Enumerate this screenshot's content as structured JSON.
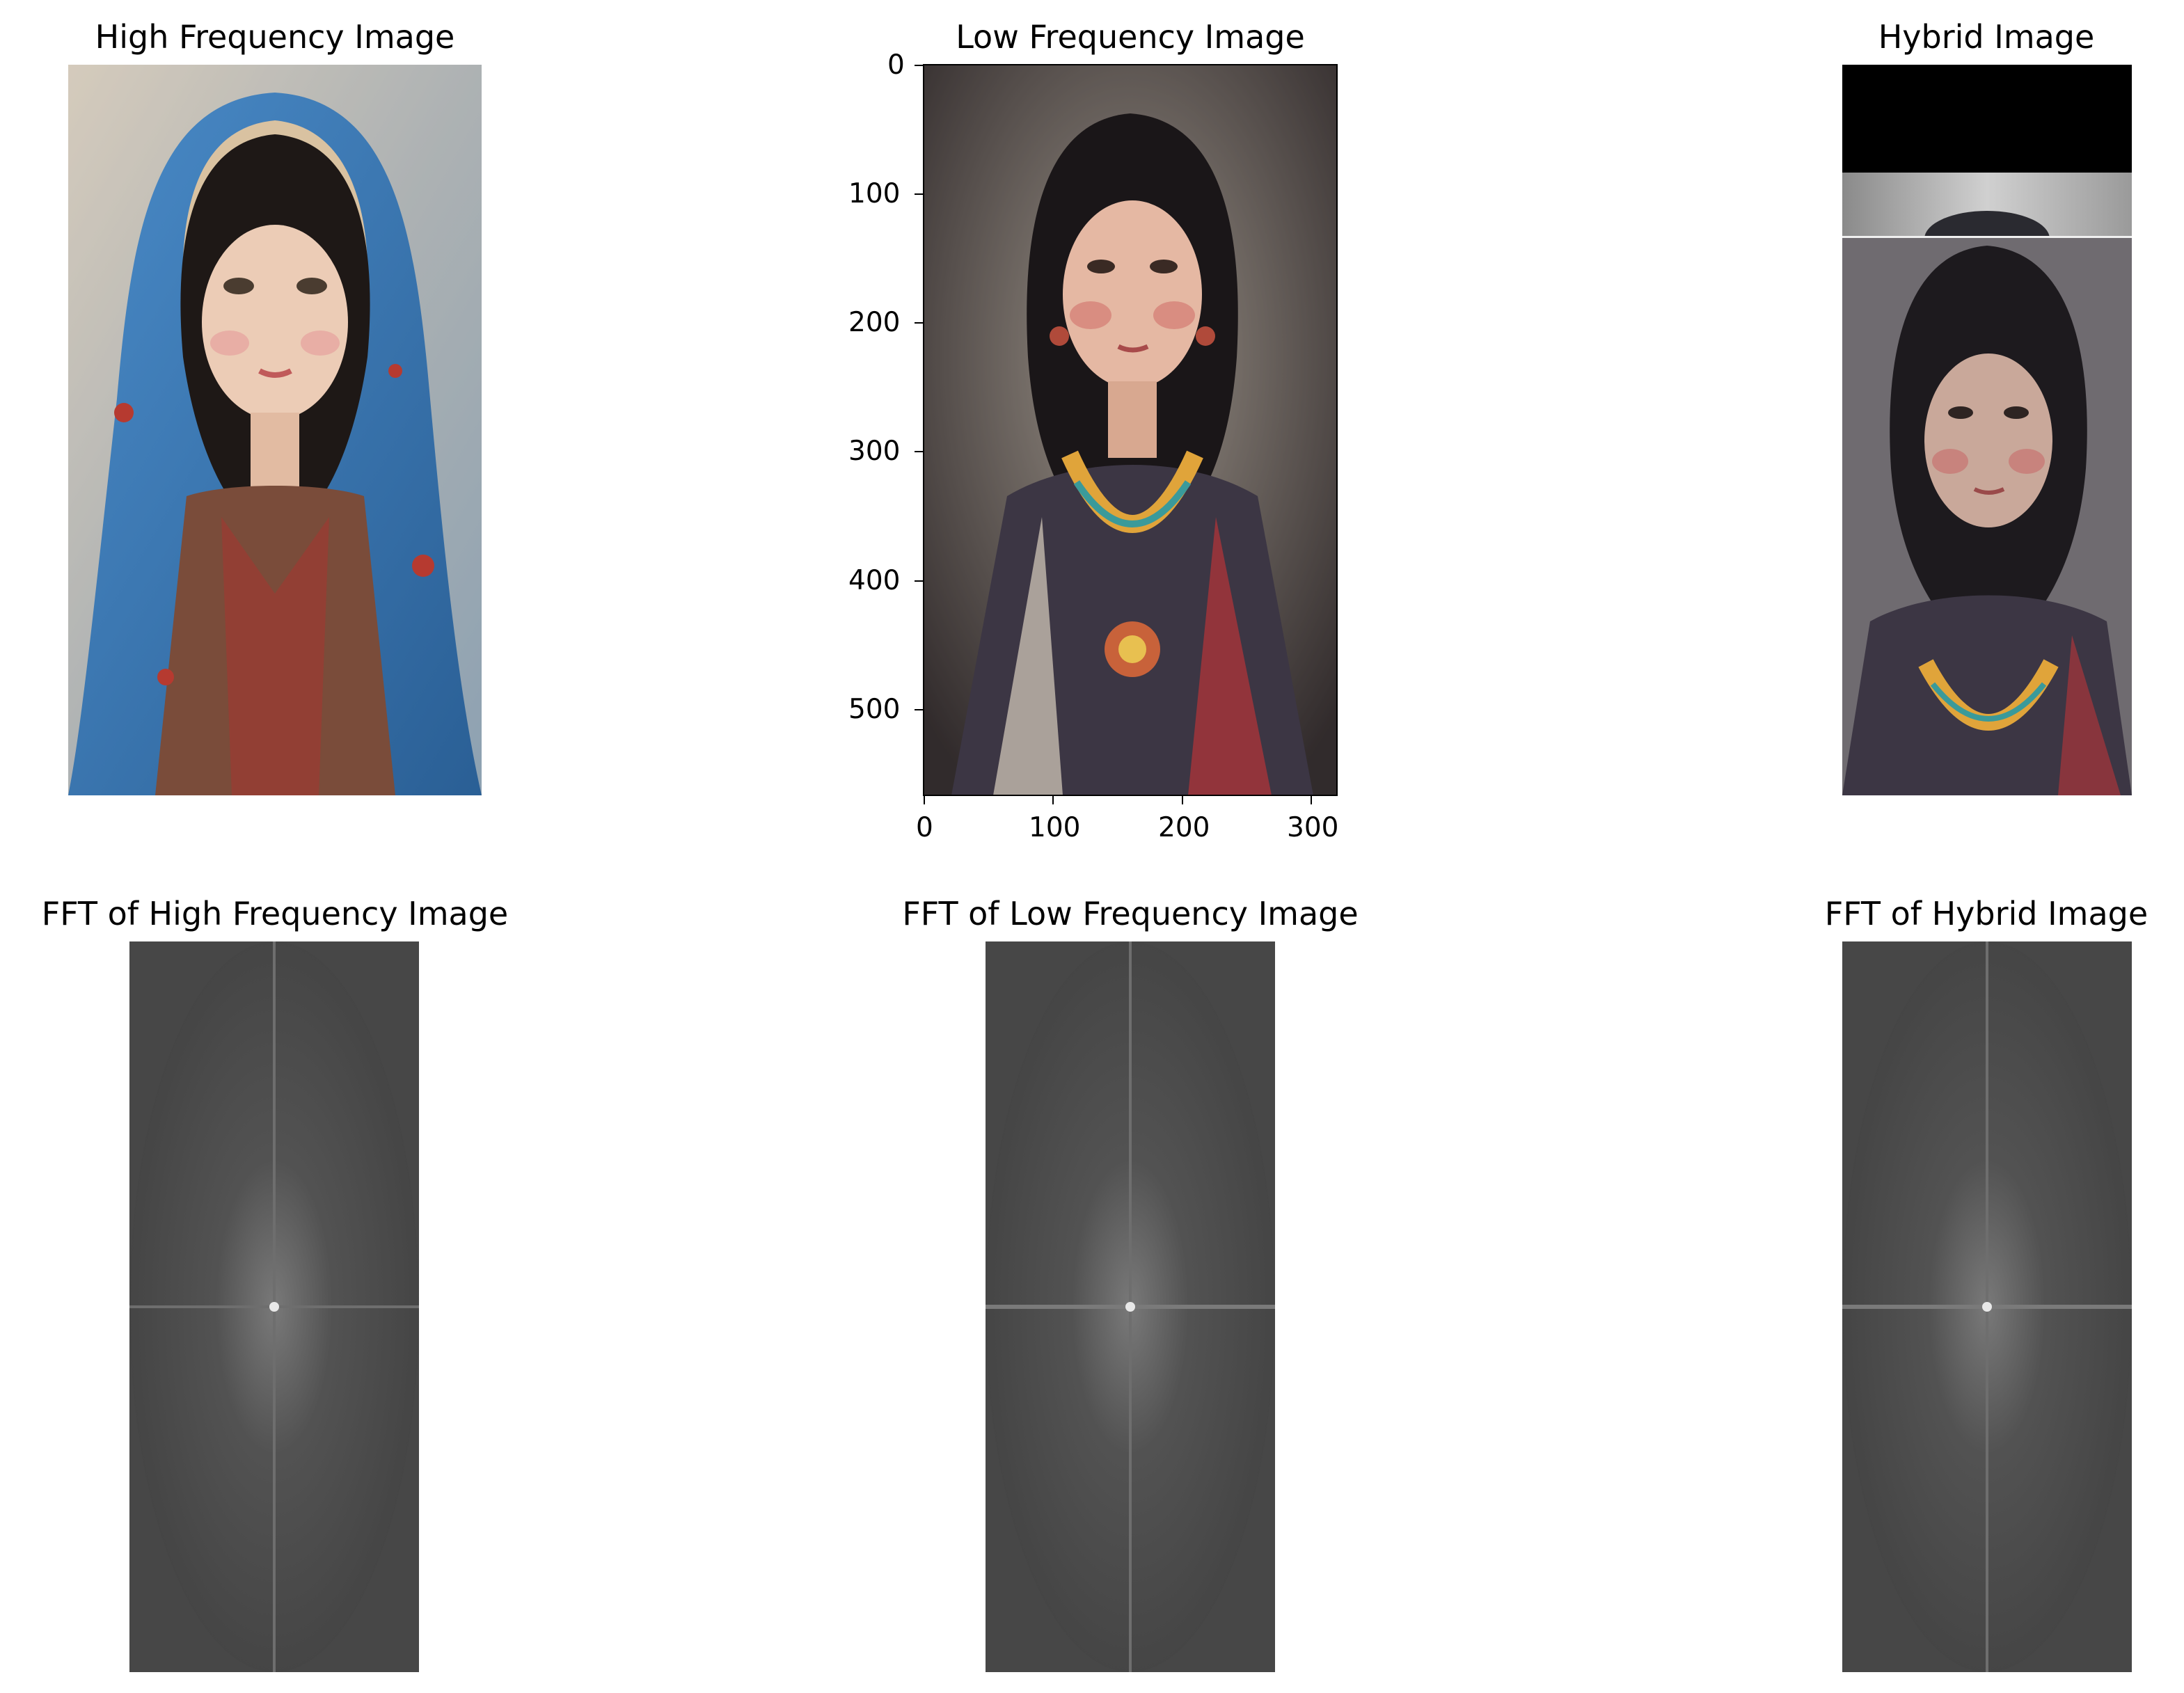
{
  "panels": {
    "high": {
      "title": "High Frequency Image"
    },
    "low": {
      "title": "Low Frequency Image",
      "y_ticks": [
        "0",
        "100",
        "200",
        "300",
        "400",
        "500"
      ],
      "x_ticks": [
        "0",
        "100",
        "200",
        "300"
      ]
    },
    "hybrid": {
      "title": "Hybrid Image"
    },
    "fft_high": {
      "title": "FFT of High Frequency Image"
    },
    "fft_low": {
      "title": "FFT of Low Frequency Image"
    },
    "fft_hybrid": {
      "title": "FFT of Hybrid Image"
    }
  },
  "colors": {
    "veil_blue": "#3d7cb8",
    "background_gray": "#b7b1a6",
    "skin": "#e8c3ad",
    "hair": "#1a1616",
    "fft_gray": "#4a4a4a"
  }
}
